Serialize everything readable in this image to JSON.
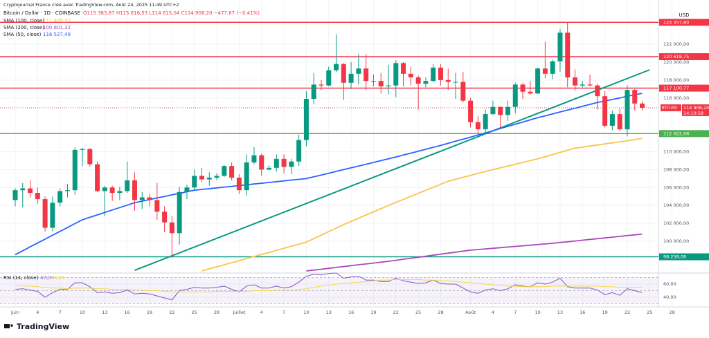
{
  "chart_data": {
    "type": "candlestick",
    "credit": "Cryptojournal France créé avec TradingView.com, Août 24, 2025 11:49 UTC+2",
    "title": "Bitcoin / Dollar · 1D · COINBASE",
    "ohlc_header": "O115 383,87 H115 616,53 L114 615,04 C114 906,20 −477,67 (−0,41%)",
    "currency": "USD",
    "logo": "TradingView",
    "colors": {
      "up": "#089981",
      "down": "#f23645"
    },
    "categories": [
      "Juin",
      null,
      null,
      "4",
      null,
      null,
      "7",
      null,
      null,
      "10",
      null,
      null,
      "13",
      null,
      null,
      "16",
      null,
      null,
      "19",
      null,
      null,
      "22",
      null,
      null,
      "25",
      null,
      null,
      "28",
      null,
      null,
      "Juillet",
      null,
      null,
      "4",
      null,
      null,
      "7",
      null,
      null,
      "10",
      null,
      null,
      "13",
      null,
      null,
      "16",
      null,
      null,
      "19",
      null,
      null,
      "22",
      null,
      null,
      "25",
      null,
      null,
      "28",
      null,
      null,
      null,
      "Août",
      null,
      null,
      "4",
      null,
      null,
      "7",
      null,
      null,
      "10",
      null,
      null,
      "13",
      null,
      null,
      "16",
      null,
      null,
      "19",
      null,
      null,
      "22",
      null,
      null,
      "25",
      null,
      null,
      "28"
    ],
    "open": [
      104600,
      105700,
      105900,
      105400,
      104700,
      101500,
      104300,
      105600,
      105700,
      110200,
      110300,
      108600,
      105600,
      106000,
      105400,
      105600,
      106800,
      104600,
      104900,
      104600,
      103300,
      102100,
      100900,
      105500,
      106000,
      107300,
      106900,
      107100,
      107300,
      108400,
      107100,
      105700,
      108800,
      109600,
      108000,
      108200,
      109200,
      108300,
      108900,
      111300,
      115900,
      117500,
      117400,
      119100,
      119800,
      117700,
      118700,
      119300,
      117900,
      117900,
      117300,
      117400,
      119900,
      118700,
      118300,
      117600,
      117900,
      119400,
      118000,
      117800,
      117800,
      115700,
      113300,
      112500,
      114200,
      115000,
      114100,
      115000,
      117500,
      116700,
      116500,
      119300,
      118700,
      120100,
      123300,
      118300,
      117400,
      117500,
      117400,
      116200,
      112900,
      114200,
      112500,
      116900,
      115383.87,
      null,
      null,
      null,
      null
    ],
    "high": [
      105900,
      106500,
      106800,
      106000,
      105000,
      105000,
      105900,
      106400,
      110500,
      110400,
      110400,
      108900,
      106200,
      106200,
      106100,
      108900,
      107700,
      105500,
      105300,
      106500,
      103900,
      102800,
      106100,
      106300,
      108000,
      108200,
      107700,
      107600,
      108500,
      108800,
      107500,
      109700,
      110500,
      109800,
      108500,
      109700,
      109700,
      109200,
      111900,
      116800,
      118800,
      118000,
      119500,
      123100,
      119900,
      120000,
      120900,
      120900,
      118600,
      118800,
      119700,
      120200,
      120000,
      119500,
      118500,
      118300,
      119800,
      119800,
      119300,
      118800,
      118900,
      116000,
      114000,
      114700,
      115700,
      115100,
      115700,
      117700,
      117700,
      117900,
      119400,
      122300,
      120300,
      123700,
      124457.8,
      119200,
      117900,
      118600,
      117600,
      116800,
      114600,
      114800,
      117400,
      117000,
      115616.53,
      null,
      null,
      null,
      null
    ],
    "low": [
      103900,
      103800,
      104900,
      104200,
      101100,
      101100,
      103900,
      104900,
      105200,
      108400,
      108300,
      105500,
      102800,
      104500,
      104600,
      105400,
      103400,
      103600,
      103900,
      102400,
      101000,
      98200,
      99600,
      104700,
      105700,
      106600,
      106200,
      106800,
      107200,
      106800,
      105300,
      105100,
      108600,
      107300,
      107900,
      107800,
      107600,
      107500,
      108400,
      110600,
      115300,
      116900,
      117300,
      118900,
      115800,
      117000,
      117500,
      116900,
      117300,
      116500,
      116400,
      116100,
      117300,
      117400,
      114700,
      117200,
      117800,
      117400,
      116900,
      115900,
      115500,
      112700,
      112000,
      112000,
      114100,
      112600,
      113400,
      114300,
      115900,
      116300,
      116500,
      118200,
      118100,
      118900,
      117200,
      116800,
      117200,
      117300,
      114700,
      112700,
      112400,
      112300,
      111700,
      114600,
      114615.04,
      null,
      null,
      null,
      null
    ],
    "close": [
      105700,
      105900,
      105400,
      104700,
      101500,
      104300,
      105600,
      105700,
      110200,
      110300,
      108600,
      105600,
      106000,
      105400,
      105600,
      106800,
      104600,
      104900,
      104600,
      103300,
      102100,
      100900,
      105500,
      106000,
      107300,
      106900,
      107100,
      107300,
      108400,
      107100,
      105700,
      108800,
      109600,
      108000,
      108200,
      109200,
      108300,
      108900,
      111300,
      115900,
      117500,
      117400,
      119100,
      119800,
      117700,
      118700,
      119300,
      117900,
      117900,
      117300,
      117400,
      119900,
      118700,
      118300,
      117600,
      117900,
      119400,
      118000,
      117800,
      117800,
      115700,
      113300,
      112500,
      114200,
      115000,
      114100,
      115000,
      117500,
      116700,
      116500,
      119300,
      118700,
      120100,
      123300,
      118300,
      117400,
      117500,
      117400,
      116200,
      112900,
      114200,
      112500,
      116900,
      115383.87,
      114906.2,
      null,
      null,
      null,
      null
    ],
    "ylim": [
      96600,
      126950
    ],
    "yticks": [
      {
        "value": 122000,
        "label": "122 000,00"
      },
      {
        "value": 120000,
        "label": "120 000,00"
      },
      {
        "value": 118000,
        "label": "118 000,00"
      },
      {
        "value": 116000,
        "label": "116 000,00"
      },
      {
        "value": 110000,
        "label": "110 000,00"
      },
      {
        "value": 108000,
        "label": "108 000,00"
      },
      {
        "value": 106000,
        "label": "106 000,00"
      },
      {
        "value": 104000,
        "label": "104 000,00"
      },
      {
        "value": 102000,
        "label": "102 000,00"
      },
      {
        "value": 100000,
        "label": "100 000,00"
      }
    ],
    "grid": true,
    "series": [
      {
        "name": "SMA (100, close)",
        "color": "#f7c548",
        "last_value_label": "111 489,93",
        "values": [
          null,
          null,
          null,
          null,
          null,
          null,
          null,
          null,
          null,
          null,
          null,
          null,
          null,
          null,
          null,
          null,
          null,
          null,
          null,
          null,
          null,
          null,
          null,
          null,
          null,
          96680,
          96910,
          97140,
          97370,
          97600,
          97830,
          98060,
          98290,
          98520,
          98750,
          98980,
          99210,
          99440,
          99670,
          99900,
          100290,
          100680,
          101070,
          101460,
          101850,
          102210,
          102570,
          102930,
          103280,
          103640,
          104000,
          104340,
          104680,
          105010,
          105350,
          105690,
          106030,
          106360,
          106700,
          106920,
          107140,
          107360,
          107580,
          107800,
          108000,
          108200,
          108400,
          108600,
          108800,
          109000,
          109200,
          109440,
          109680,
          109920,
          110160,
          110400,
          110520,
          110640,
          110750,
          110870,
          110990,
          111110,
          111230,
          111350,
          111489.93,
          null,
          null,
          null,
          null
        ]
      },
      {
        "name": "SMA (200, close)",
        "color": "#ab47bc",
        "last_value_label": "100 801,32",
        "values": [
          null,
          null,
          null,
          null,
          null,
          null,
          null,
          null,
          null,
          null,
          null,
          null,
          null,
          null,
          null,
          null,
          null,
          null,
          null,
          null,
          null,
          null,
          null,
          null,
          null,
          null,
          null,
          null,
          null,
          null,
          null,
          null,
          null,
          null,
          null,
          null,
          null,
          null,
          null,
          96680,
          96780,
          96870,
          96970,
          97070,
          97170,
          97270,
          97370,
          97460,
          97560,
          97660,
          97760,
          97870,
          97990,
          98100,
          98210,
          98330,
          98440,
          98550,
          98660,
          98780,
          98890,
          99000,
          99070,
          99140,
          99210,
          99280,
          99350,
          99420,
          99490,
          99560,
          99630,
          99700,
          99770,
          99860,
          99940,
          100030,
          100110,
          100200,
          100280,
          100370,
          100450,
          100540,
          100630,
          100710,
          100801.32,
          null,
          null,
          null,
          null
        ]
      },
      {
        "name": "SMA (50, close)",
        "color": "#2962ff",
        "last_value_label": "116 527,49",
        "values": [
          98500,
          98930,
          99370,
          99800,
          100230,
          100670,
          101100,
          101530,
          101970,
          102400,
          102670,
          102940,
          103210,
          103490,
          103760,
          104030,
          104300,
          104480,
          104650,
          104830,
          105000,
          105180,
          105350,
          105530,
          105700,
          105790,
          105870,
          105960,
          106050,
          106130,
          106220,
          106300,
          106390,
          106480,
          106560,
          106650,
          106740,
          106830,
          106910,
          107000,
          107200,
          107400,
          107600,
          107800,
          108000,
          108200,
          108400,
          108600,
          108800,
          109000,
          109200,
          109410,
          109630,
          109840,
          110060,
          110270,
          110490,
          110700,
          110930,
          111170,
          111400,
          111630,
          111870,
          112100,
          112340,
          112590,
          112830,
          113070,
          113310,
          113560,
          113800,
          114010,
          114230,
          114440,
          114650,
          114860,
          115080,
          115290,
          115500,
          115670,
          115840,
          116010,
          116190,
          116360,
          116527.49,
          null,
          null,
          null,
          null
        ]
      }
    ],
    "levels": [
      {
        "value": 124457.8,
        "label": "124 457,80",
        "color": "#f23645"
      },
      {
        "value": 120618.75,
        "label": "120 618,75",
        "color": "#f23645"
      },
      {
        "value": 117100.77,
        "label": "117 100,77",
        "color": "#f23645"
      },
      {
        "value": 112022.08,
        "label": "112 022,08",
        "color": "#4caf50"
      },
      {
        "value": 98258.08,
        "label": "98 258,08",
        "color": "#089981"
      }
    ],
    "trendline": {
      "color": "#089981",
      "from": 16,
      "to": 85,
      "values": [
        96750,
        119150
      ]
    },
    "last_price": {
      "symbol": "BTCUSD",
      "value": 114906.2,
      "label": "114 906,20",
      "countdown": "14:10:58",
      "color": "#f23645"
    },
    "rsi": {
      "name": "RSI (14, close)",
      "ylim": [
        27.4,
        73.7
      ],
      "yticks": [
        {
          "value": 60,
          "label": "60,00"
        },
        {
          "value": 40,
          "label": "40,00"
        }
      ],
      "bands": [
        70,
        50,
        30
      ],
      "series": [
        {
          "color": "#7e57c2",
          "last_value_label": "47,07",
          "values": [
            52,
            53,
            51,
            49,
            40,
            47,
            52,
            52,
            62,
            62,
            56,
            47,
            48,
            46,
            47,
            51,
            45,
            46,
            45,
            42,
            39,
            36,
            50,
            52,
            55,
            54,
            54,
            55,
            57,
            52,
            48,
            57,
            59,
            54,
            54,
            57,
            54,
            56,
            63,
            72,
            75,
            74,
            76,
            77,
            69,
            71,
            72,
            66,
            66,
            64,
            64,
            69,
            65,
            63,
            61,
            62,
            66,
            61,
            60,
            60,
            54,
            48,
            46,
            51,
            53,
            50,
            53,
            59,
            57,
            56,
            62,
            60,
            63,
            69,
            56,
            54,
            54,
            54,
            51,
            44,
            47,
            43,
            53,
            50,
            47.07,
            null,
            null,
            null,
            null
          ]
        },
        {
          "color": "#f7d64a",
          "last_value_label": "54,86",
          "values": [
            58,
            57,
            57,
            56,
            55,
            54,
            54,
            53,
            54,
            54,
            54,
            53,
            53,
            52,
            52,
            52,
            51,
            51,
            50,
            50,
            49,
            48,
            48,
            48,
            48,
            48,
            48,
            49,
            49,
            49,
            49,
            49,
            50,
            50,
            50,
            51,
            51,
            51,
            52,
            53,
            55,
            57,
            58,
            60,
            61,
            62,
            63,
            64,
            65,
            66,
            66,
            67,
            67,
            67,
            67,
            66,
            66,
            65,
            65,
            64,
            63,
            62,
            61,
            60,
            59,
            58,
            57,
            57,
            56,
            56,
            56,
            56,
            57,
            57,
            57,
            57,
            57,
            57,
            57,
            56,
            56,
            55,
            55,
            55,
            54.86,
            null,
            null,
            null,
            null
          ]
        }
      ]
    }
  }
}
